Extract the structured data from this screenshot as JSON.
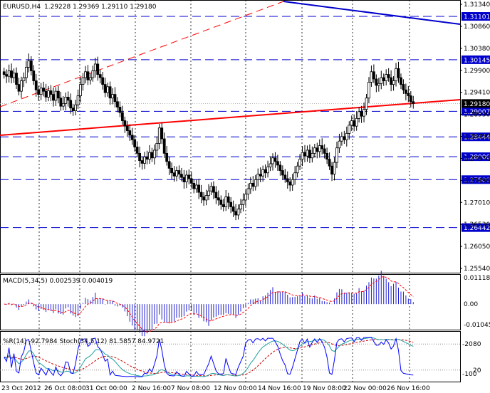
{
  "header": {
    "symbol": "EURUSD,H4",
    "ohlc": "1.29228 1.29369 1.29110 1.29180"
  },
  "colors": {
    "bull": "#000000",
    "bear": "#000000",
    "hline": "#0000cc",
    "redline": "#ff0000",
    "blueline": "#0000cc",
    "label_bg": "#0000cc",
    "macd_hist": "#2020d0",
    "macd_signal": "#ff0000",
    "wpr": "#0000ff",
    "stoch_main": "#20a0a0",
    "stoch_signal": "#cc0000"
  },
  "price_axis": {
    "ticks": [
      "1.31340",
      "1.30860",
      "1.30380",
      "1.29900",
      "1.29410",
      "1.28930",
      "1.28450",
      "1.27970",
      "1.27490",
      "1.27010",
      "1.26530",
      "1.26050",
      "1.25540"
    ],
    "levels": [
      {
        "label": "1.31101",
        "price": 1.31101
      },
      {
        "label": "1.30145",
        "price": 1.30145
      },
      {
        "label": "1.29007",
        "price": 1.29007
      },
      {
        "label": "1.28444",
        "price": 1.28444
      },
      {
        "label": "1.28006",
        "price": 1.28006
      },
      {
        "label": "1.27500",
        "price": 1.275
      },
      {
        "label": "1.26442",
        "price": 1.26442
      }
    ],
    "current": {
      "label": "1.29180",
      "price": 1.2918
    },
    "range": [
      1.2551,
      1.314
    ]
  },
  "macd": {
    "label": "MACD(5,34,5) 0.002539 0.004019",
    "ticks": [
      "0.011188",
      "0.00",
      "-0.01045"
    ],
    "range": [
      -0.01045,
      0.011188
    ]
  },
  "osc": {
    "label": "%R(14) -92.7984 Stoch(34,5,12) 81.5857 84.9721",
    "ticks_left": [
      "-20",
      "-100"
    ],
    "ticks_right": [
      "80",
      "20"
    ]
  },
  "time_axis": {
    "labels": [
      "23 Oct 2012",
      "26 Oct 08:00",
      "31 Oct 00:00",
      "2 Nov 16:00",
      "7 Nov 08:00",
      "12 Nov 00:00",
      "14 Nov 16:00",
      "19 Nov 08:00",
      "22 Nov 00:00",
      "26 Nov 16:00"
    ]
  },
  "chart_data": {
    "type": "candlestick",
    "title": "EURUSD,H4",
    "close": [
      1.2982,
      1.2978,
      1.299,
      1.2975,
      1.2985,
      1.296,
      1.2945,
      1.2968,
      1.2975,
      1.2998,
      1.3012,
      1.299,
      1.2968,
      1.2948,
      1.2938,
      1.2952,
      1.2945,
      1.2932,
      1.2946,
      1.2938,
      1.2925,
      1.2945,
      1.293,
      1.2912,
      1.2918,
      1.2932,
      1.2925,
      1.2908,
      1.2902,
      1.2915,
      1.2935,
      1.296,
      1.2975,
      1.2988,
      1.297,
      1.2975,
      1.299,
      1.3005,
      1.2982,
      1.2975,
      1.296,
      1.2942,
      1.2955,
      1.293,
      1.2938,
      1.2922,
      1.291,
      1.2898,
      1.288,
      1.2868,
      1.2858,
      1.2848,
      1.2838,
      1.2822,
      1.2808,
      1.2792,
      1.2786,
      1.28,
      1.2795,
      1.281,
      1.2798,
      1.2815,
      1.283,
      1.2864,
      1.284,
      1.2808,
      1.279,
      1.2775,
      1.2765,
      1.2758,
      1.277,
      1.2762,
      1.2755,
      1.2745,
      1.276,
      1.2752,
      1.2742,
      1.273,
      1.2738,
      1.2722,
      1.2712,
      1.2705,
      1.2715,
      1.2725,
      1.2735,
      1.2722,
      1.271,
      1.2705,
      1.2695,
      1.269,
      1.2712,
      1.27,
      1.269,
      1.268,
      1.2672,
      1.2685,
      1.2695,
      1.2705,
      1.2718,
      1.273,
      1.2742,
      1.2735,
      1.275,
      1.2762,
      1.2758,
      1.2772,
      1.2765,
      1.2778,
      1.2785,
      1.2798,
      1.279,
      1.2782,
      1.277,
      1.276,
      1.2752,
      1.2745,
      1.2738,
      1.275,
      1.2765,
      1.278,
      1.2795,
      1.281,
      1.2802,
      1.2815,
      1.2798,
      1.2808,
      1.282,
      1.2812,
      1.2825,
      1.2818,
      1.2808,
      1.2795,
      1.278,
      1.2762,
      1.2788,
      1.282,
      1.2835,
      1.2845,
      1.2838,
      1.2852,
      1.287,
      1.288,
      1.2868,
      1.2885,
      1.29,
      1.289,
      1.2905,
      1.293,
      1.2965,
      1.2988,
      1.2972,
      1.2958,
      1.2962,
      1.2975,
      1.2968,
      1.2982,
      1.2975,
      1.296,
      1.2968,
      1.2995,
      1.2975,
      1.296,
      1.2948,
      1.294,
      1.2935,
      1.2922,
      1.2918
    ],
    "markers": [
      {
        "label": "1.31101"
      },
      {
        "label": "1.30145"
      },
      {
        "label": "1.29007"
      },
      {
        "label": "1.28444"
      },
      {
        "label": "1.28006"
      },
      {
        "label": "1.27500"
      },
      {
        "label": "1.26442"
      }
    ]
  }
}
